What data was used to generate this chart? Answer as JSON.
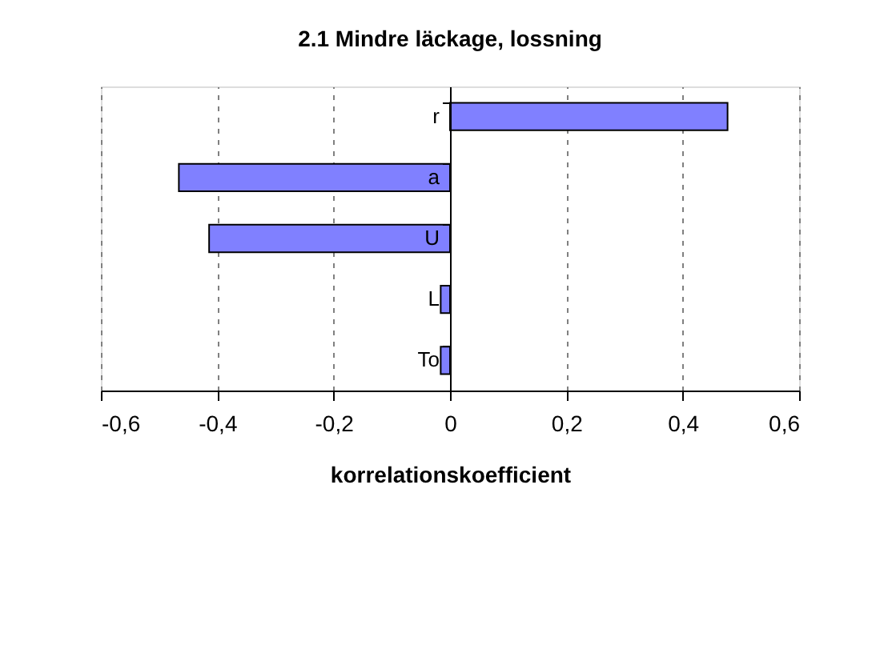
{
  "chart_data": {
    "type": "bar",
    "orientation": "horizontal",
    "title": "2.1 Mindre läckage, lossning",
    "xlabel": "korrelationskoefficient",
    "categories": [
      "r",
      "a",
      "U",
      "L",
      "To"
    ],
    "values": [
      0.477,
      -0.466,
      -0.414,
      -0.016,
      -0.016
    ],
    "color": "#8080ff",
    "xlim": [
      -0.6,
      0.6
    ],
    "xticks": [
      {
        "value": -0.6,
        "label": "-0,6"
      },
      {
        "value": -0.4,
        "label": "-0,4"
      },
      {
        "value": -0.2,
        "label": "-0,2"
      },
      {
        "value": 0,
        "label": "0"
      },
      {
        "value": 0.2,
        "label": "0,2"
      },
      {
        "value": 0.4,
        "label": "0,4"
      },
      {
        "value": 0.6,
        "label": "0,6"
      }
    ],
    "grid": "x"
  }
}
